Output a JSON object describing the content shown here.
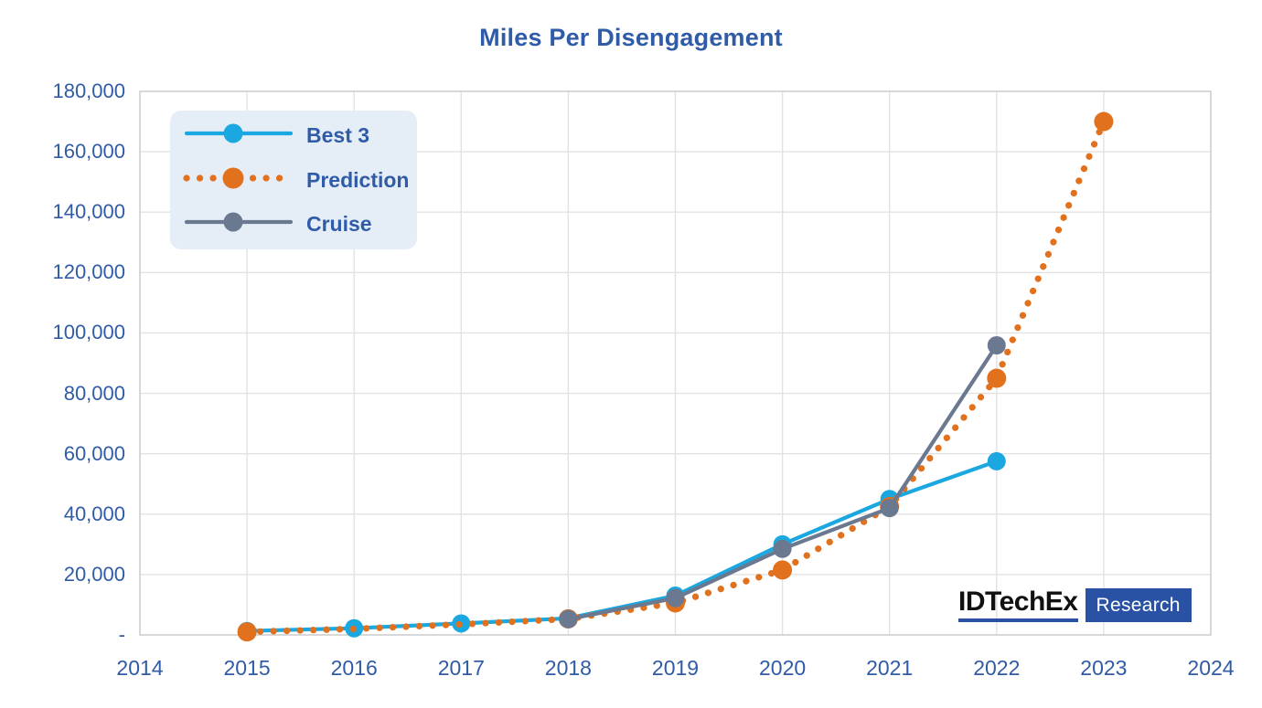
{
  "title": "Miles Per Disengagement",
  "colors": {
    "title_text": "#2F5BA7",
    "axis_text": "#2F5BA7",
    "grid_line": "#E2E2E2",
    "plot_border": "#CFCFCF",
    "legend_bg": "#E5EEF7",
    "best3": "#1BA7E0",
    "prediction": "#E2711D",
    "cruise": "#6A7890",
    "logo_blue": "#2A52A4"
  },
  "legend": {
    "items": [
      {
        "label": "Best 3"
      },
      {
        "label": "Prediction"
      },
      {
        "label": "Cruise"
      }
    ]
  },
  "y_axis": {
    "tick_labels": [
      "180,000",
      "160,000",
      "140,000",
      "120,000",
      "100,000",
      "80,000",
      "60,000",
      "40,000",
      "20,000",
      "-"
    ],
    "tick_values": [
      180000,
      160000,
      140000,
      120000,
      100000,
      80000,
      60000,
      40000,
      20000,
      0
    ]
  },
  "x_axis": {
    "tick_labels": [
      "2014",
      "2015",
      "2016",
      "2017",
      "2018",
      "2019",
      "2020",
      "2021",
      "2022",
      "2023",
      "2024"
    ]
  },
  "chart_data": {
    "type": "line",
    "title": "Miles Per Disengagement",
    "xlabel": "",
    "ylabel": "",
    "xlim": [
      2014,
      2024
    ],
    "ylim": [
      0,
      180000
    ],
    "grid": true,
    "legend_position": "top-left",
    "series": [
      {
        "name": "Best 3",
        "color": "#1BA7E0",
        "style": "solid",
        "points": [
          {
            "x": 2015,
            "y": 1300
          },
          {
            "x": 2016,
            "y": 2200
          },
          {
            "x": 2017,
            "y": 3800
          },
          {
            "x": 2018,
            "y": 5500
          },
          {
            "x": 2019,
            "y": 13000
          },
          {
            "x": 2020,
            "y": 30000
          },
          {
            "x": 2021,
            "y": 45000
          },
          {
            "x": 2022,
            "y": 57500
          }
        ]
      },
      {
        "name": "Prediction",
        "color": "#E2711D",
        "style": "dotted",
        "points": [
          {
            "x": 2015,
            "y": 1000,
            "m": true
          },
          {
            "x": 2016,
            "y": 2000,
            "m": false
          },
          {
            "x": 2017,
            "y": 3500,
            "m": false
          },
          {
            "x": 2018,
            "y": 5300,
            "m": true
          },
          {
            "x": 2019,
            "y": 10600,
            "m": true
          },
          {
            "x": 2020,
            "y": 21500,
            "m": true
          },
          {
            "x": 2021,
            "y": 42500,
            "m": true
          },
          {
            "x": 2022,
            "y": 85000,
            "m": true
          },
          {
            "x": 2023,
            "y": 170000,
            "m": true
          }
        ]
      },
      {
        "name": "Cruise",
        "color": "#6A7890",
        "style": "solid",
        "points": [
          {
            "x": 2018,
            "y": 5200
          },
          {
            "x": 2019,
            "y": 12200
          },
          {
            "x": 2020,
            "y": 28500
          },
          {
            "x": 2021,
            "y": 42000
          },
          {
            "x": 2022,
            "y": 95900
          }
        ]
      }
    ]
  },
  "logo": {
    "brand": "IDTechEx",
    "suffix": "Research"
  }
}
